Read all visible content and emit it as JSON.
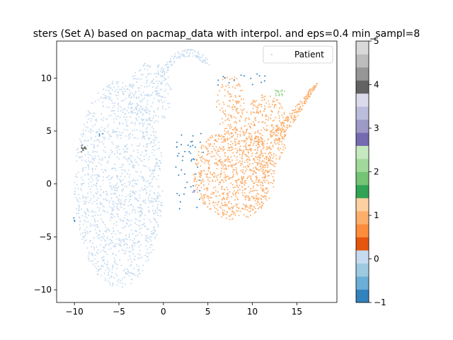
{
  "chart_data": {
    "type": "scatter",
    "title": "sters (Set A) based on pacmap_data with interpol. and eps=0.4 min_sampl=8",
    "xlabel": "",
    "ylabel": "",
    "xlim": [
      -12,
      19.5
    ],
    "ylim": [
      -11.2,
      13.5
    ],
    "xticks": [
      -10,
      -5,
      0,
      5,
      10,
      15
    ],
    "yticks": [
      -10,
      -5,
      0,
      5,
      10
    ],
    "grid": false,
    "legend": {
      "position": "top-right",
      "entries": [
        "Patient"
      ]
    },
    "series": [
      {
        "name": "Patient",
        "cluster": 0,
        "color": "#c6dbef",
        "regions": [
          {
            "shape": "ellipse",
            "cx": -5,
            "cy": 0,
            "rx": 5,
            "ry": 9.8,
            "n": 1400
          },
          {
            "shape": "ellipse",
            "cx": -1.5,
            "cy": 8.5,
            "rx": 2.5,
            "ry": 3,
            "n": 180
          },
          {
            "shape": "arc",
            "cx": 2.8,
            "cy": 7.0,
            "rx": 3.6,
            "ry": 5.4,
            "thickness": 0.5,
            "from_deg": 50,
            "to_deg": 170,
            "n": 120
          }
        ]
      },
      {
        "name": "",
        "cluster": 1,
        "color": "#fdae6b",
        "regions": [
          {
            "shape": "ellipse",
            "cx": 8,
            "cy": 1,
            "rx": 4.6,
            "ry": 4.4,
            "n": 900
          },
          {
            "shape": "ellipse",
            "cx": 11.5,
            "cy": 5.0,
            "rx": 2.5,
            "ry": 3.5,
            "n": 300
          },
          {
            "shape": "ellipse",
            "cx": 7.5,
            "cy": 7.5,
            "rx": 1.6,
            "ry": 2.8,
            "n": 120
          },
          {
            "shape": "band",
            "from": [
              12.5,
              4.0
            ],
            "to": [
              17.3,
              9.6
            ],
            "width": 1.4,
            "n": 160
          }
        ]
      },
      {
        "name": "",
        "cluster": -1,
        "color": "#3182bd",
        "regions": [
          {
            "shape": "rect",
            "x": [
              1.2,
              4.5
            ],
            "y": [
              -2.8,
              5.0
            ],
            "n": 45
          },
          {
            "shape": "rect",
            "x": [
              6.0,
              11.5
            ],
            "y": [
              9.2,
              10.6
            ],
            "n": 15
          },
          {
            "shape": "rect",
            "x": [
              -10.2,
              -9.8
            ],
            "y": [
              -3.6,
              -3.2
            ],
            "n": 3
          },
          {
            "shape": "rect",
            "x": [
              -7.2,
              -6.8
            ],
            "y": [
              4.5,
              4.9
            ],
            "n": 3
          }
        ]
      },
      {
        "name": "",
        "cluster": 2,
        "color": "#a1d99b",
        "regions": [
          {
            "shape": "ellipse",
            "cx": 13,
            "cy": 8.6,
            "rx": 0.7,
            "ry": 0.35,
            "n": 20
          }
        ]
      },
      {
        "name": "",
        "cluster": 3,
        "color": "#9e9ac8",
        "regions": [
          {
            "shape": "ellipse",
            "cx": 3.5,
            "cy": -0.8,
            "rx": 0.25,
            "ry": 0.25,
            "n": 5
          }
        ]
      },
      {
        "name": "",
        "cluster": 4,
        "color": "#636363",
        "regions": [
          {
            "shape": "ellipse",
            "cx": -9.0,
            "cy": 3.3,
            "rx": 0.4,
            "ry": 0.4,
            "n": 14
          }
        ]
      }
    ],
    "colorbar": {
      "min": -1,
      "max": 5,
      "ticks": [
        "−1",
        "0",
        "1",
        "2",
        "3",
        "4",
        "5"
      ],
      "colors": [
        "#3182bd",
        "#6baed6",
        "#9ecae1",
        "#c6dbef",
        "#e6550d",
        "#fd8d3c",
        "#fdae6b",
        "#fdd0a2",
        "#31a354",
        "#74c476",
        "#a1d99b",
        "#c7e9c0",
        "#756bb1",
        "#9e9ac8",
        "#bcbddc",
        "#dadaeb",
        "#636363",
        "#969696",
        "#bdbdbd",
        "#d9d9d9"
      ]
    }
  }
}
